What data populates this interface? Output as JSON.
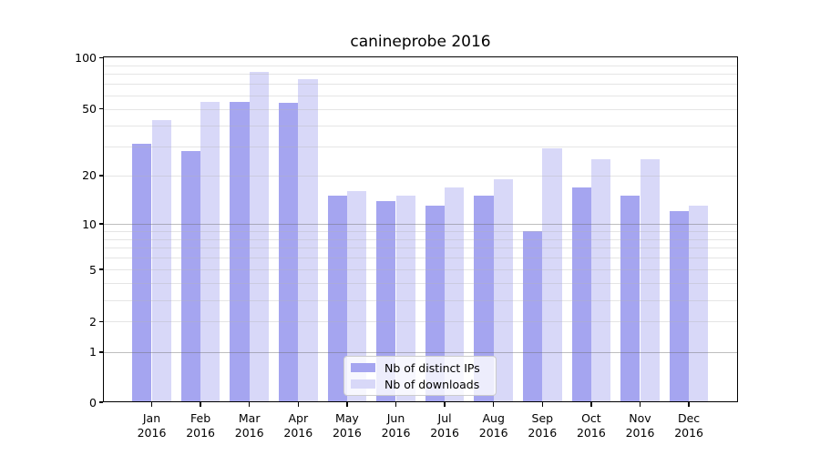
{
  "title": "canineprobe 2016",
  "x_axis": {
    "months": [
      "Jan",
      "Feb",
      "Mar",
      "Apr",
      "May",
      "Jun",
      "Jul",
      "Aug",
      "Sep",
      "Oct",
      "Nov",
      "Dec"
    ],
    "year": "2016"
  },
  "y_axis": {
    "tick_labels": [
      "0",
      "1",
      "2",
      "5",
      "10",
      "20",
      "50",
      "100"
    ],
    "scale": "log(1+x)",
    "range": [
      0,
      100
    ]
  },
  "legend": {
    "position": "lower center",
    "items": [
      {
        "label": "Nb of distinct IPs",
        "color": "#a5a5f0"
      },
      {
        "label": "Nb of downloads",
        "color": "#d8d8f8"
      }
    ]
  },
  "chart_data": {
    "type": "bar",
    "title": "canineprobe 2016",
    "categories": [
      "Jan 2016",
      "Feb 2016",
      "Mar 2016",
      "Apr 2016",
      "May 2016",
      "Jun 2016",
      "Jul 2016",
      "Aug 2016",
      "Sep 2016",
      "Oct 2016",
      "Nov 2016",
      "Dec 2016"
    ],
    "series": [
      {
        "name": "Nb of distinct IPs",
        "color": "#a5a5f0",
        "values": [
          31,
          28,
          55,
          54,
          15,
          14,
          13,
          15,
          9,
          17,
          15,
          12
        ]
      },
      {
        "name": "Nb of downloads",
        "color": "#d8d8f8",
        "values": [
          43,
          55,
          82,
          75,
          16,
          15,
          17,
          19,
          29,
          25,
          25,
          13
        ]
      }
    ],
    "xlabel": "",
    "ylabel": "",
    "y_ticks": [
      0,
      1,
      2,
      5,
      10,
      20,
      50,
      100
    ],
    "y_scale": "log1p",
    "ylim": [
      0,
      100
    ],
    "grid": {
      "horizontal": true,
      "major_lines": [
        1,
        10
      ],
      "minor_lines": [
        2,
        3,
        4,
        5,
        6,
        7,
        8,
        9,
        20,
        30,
        40,
        50,
        60,
        70,
        80,
        90
      ]
    },
    "legend_position": "lower center"
  }
}
